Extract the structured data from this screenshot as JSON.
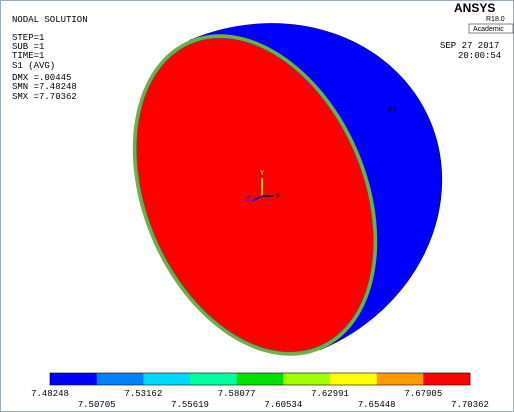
{
  "header": {
    "title": "NODAL SOLUTION",
    "lines": [
      "STEP=1",
      "SUB =1",
      "TIME=1",
      "S1       (AVG)",
      "DMX =.00445",
      "SMN =7.48248",
      "SMX =7.70362"
    ]
  },
  "brand": {
    "name": "ANSYS",
    "release": "R18.0",
    "edition": "Academic"
  },
  "stamp": {
    "date": "SEP 27 2017",
    "time": "20:00:54"
  },
  "triad": {
    "y": "Y",
    "x": "X",
    "z": "Z"
  },
  "marker": "MX",
  "legend": {
    "colors": [
      "#0000ff",
      "#0080ff",
      "#00d8ff",
      "#00ffa0",
      "#00e000",
      "#a0ff00",
      "#ffff00",
      "#ff9a00",
      "#ff0000"
    ],
    "labels": [
      "7.48248",
      "7.50705",
      "7.53162",
      "7.55619",
      "7.58077",
      "7.60534",
      "7.62991",
      "7.65448",
      "7.67905",
      "7.70362"
    ]
  }
}
